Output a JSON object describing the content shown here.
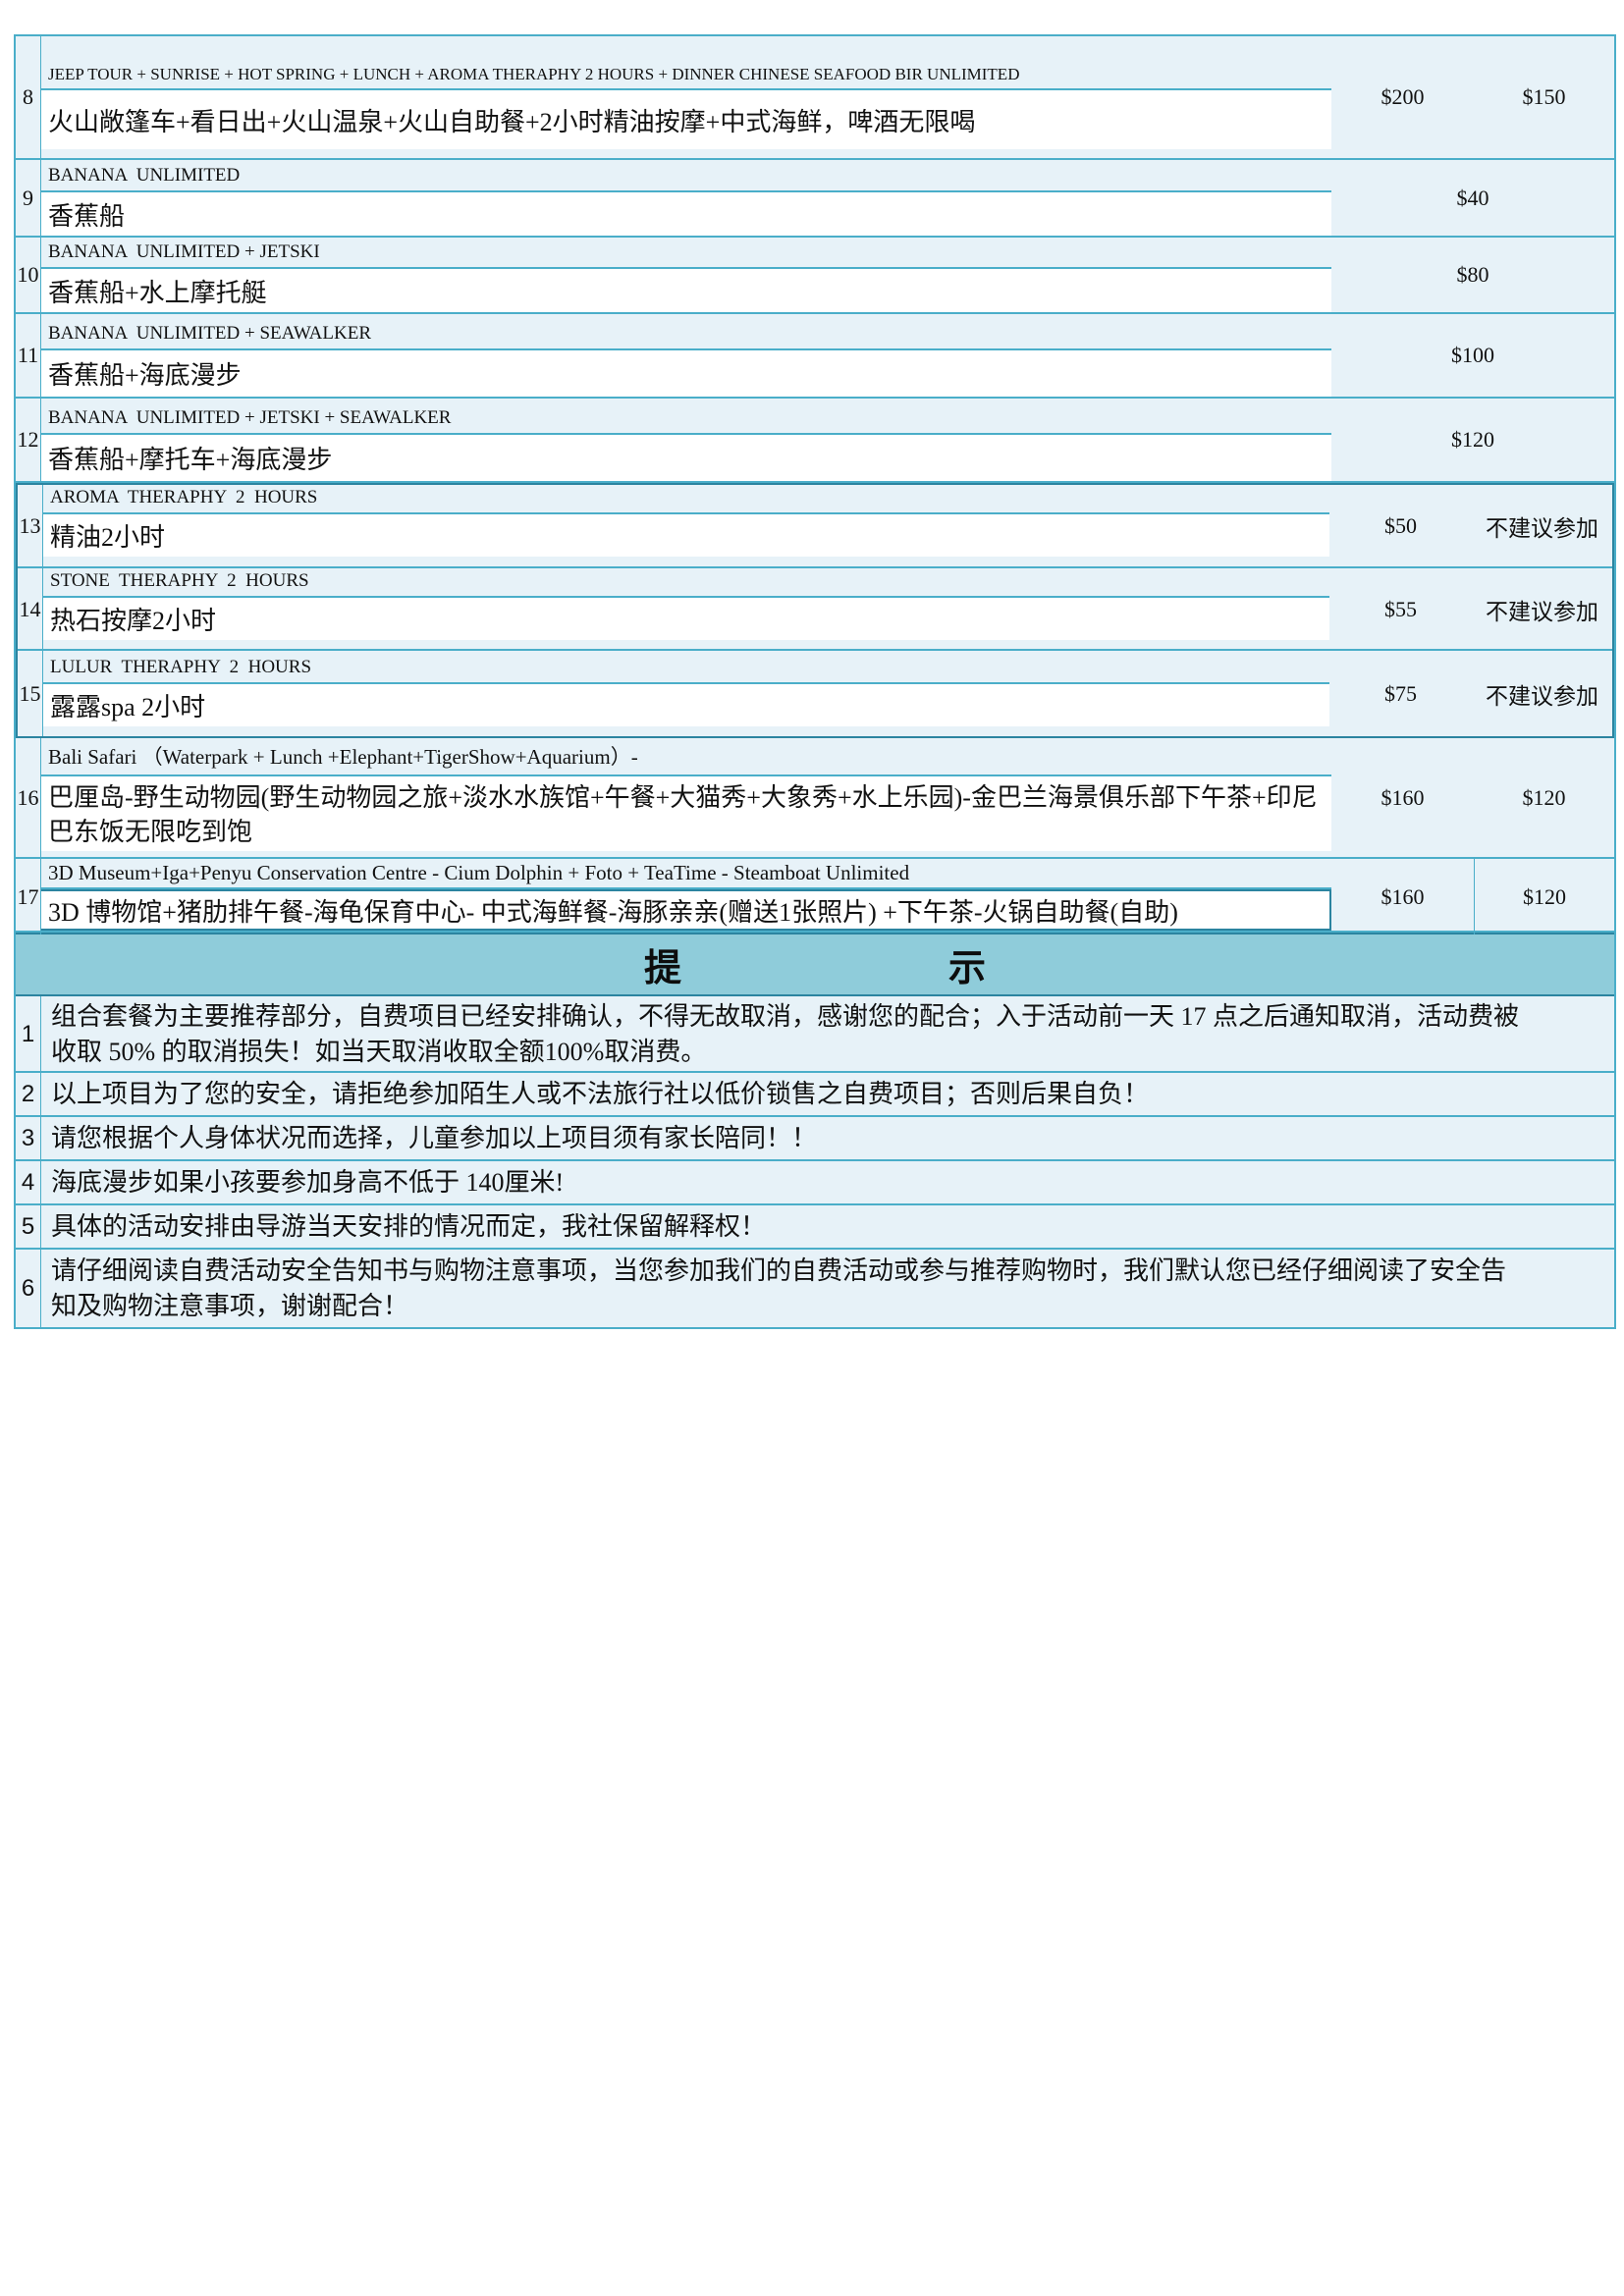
{
  "colors": {
    "border": "#4aaec9",
    "border_dark": "#2b84a0",
    "cell_bg": "#e7f2f8",
    "notice_bg": "#8fccda",
    "white_cell": "#ffffff"
  },
  "rows": [
    {
      "num": "8",
      "en": "JEEP TOUR + SUNRISE + HOT SPRING + LUNCH + AROMA THERAPHY 2 HOURS + DINNER CHINESE SEAFOOD BIR UNLIMITED",
      "zh": "火山敞篷车+看日出+火山温泉+火山自助餐+2小时精油按摩+中式海鲜，啤酒无限喝",
      "price_adult": "$200",
      "price_child": "$150"
    },
    {
      "num": "9",
      "en": "BANANA  UNLIMITED",
      "zh": "香蕉船",
      "price": "$40"
    },
    {
      "num": "10",
      "en": "BANANA  UNLIMITED + JETSKI",
      "zh": "香蕉船+水上摩托艇",
      "price": "$80"
    },
    {
      "num": "11",
      "en": "BANANA  UNLIMITED + SEAWALKER",
      "zh": "香蕉船+海底漫步",
      "price": "$100"
    },
    {
      "num": "12",
      "en": "BANANA  UNLIMITED + JETSKI + SEAWALKER",
      "zh": "香蕉船+摩托车+海底漫步",
      "price": "$120"
    },
    {
      "num": "13",
      "en": "AROMA  THERAPHY  2  HOURS",
      "zh": "精油2小时",
      "price_adult": "$50",
      "remark": "不建议参加"
    },
    {
      "num": "14",
      "en": "STONE  THERAPHY  2  HOURS",
      "zh": "热石按摩2小时",
      "price_adult": "$55",
      "remark": "不建议参加"
    },
    {
      "num": "15",
      "en": "LULUR  THERAPHY  2  HOURS",
      "zh": "露露spa 2小时",
      "price_adult": "$75",
      "remark": "不建议参加"
    },
    {
      "num": "16",
      "en": "Bali Safari （Waterpark + Lunch +Elephant+TigerShow+Aquarium）-",
      "zh": "巴厘岛-野生动物园(野生动物园之旅+淡水水族馆+午餐+大猫秀+大象秀+水上乐园)-金巴兰海景俱乐部下午茶+印尼巴东饭无限吃到饱",
      "price_adult": "$160",
      "price_child": "$120"
    },
    {
      "num": "17",
      "en": "3D Museum+Iga+Penyu Conservation Centre - Cium Dolphin + Foto + TeaTime - Steamboat Unlimited",
      "zh": "3D 博物馆+猪肋排午餐-海龟保育中心- 中式海鲜餐-海豚亲亲(赠送1张照片) +下午茶-火锅自助餐(自助)",
      "price_adult": "$160",
      "price_child": "$120"
    }
  ],
  "notice": {
    "t1": "提",
    "t2": "示"
  },
  "notes": [
    {
      "num": "1",
      "text": "组合套餐为主要推荐部分，自费项目已经安排确认，不得无故取消，感谢您的配合；入于活动前一天 17 点之后通知取消，活动费被收取 50% 的取消损失！如当天取消收取全额100%取消费。"
    },
    {
      "num": "2",
      "text": "以上项目为了您的安全，请拒绝参加陌生人或不法旅行社以低价锁售之自费项目；否则后果自负！"
    },
    {
      "num": "3",
      "text": "请您根据个人身体状况而选择，儿童参加以上项目须有家长陪同！！"
    },
    {
      "num": "4",
      "text": "海底漫步如果小孩要参加身高不低于 140厘米!"
    },
    {
      "num": "5",
      "text": "具体的活动安排由导游当天安排的情况而定，我社保留解释权！"
    },
    {
      "num": "6",
      "text": "请仔细阅读自费活动安全告知书与购物注意事项，当您参加我们的自费活动或参与推荐购物时，我们默认您已经仔细阅读了安全告知及购物注意事项，谢谢配合！"
    }
  ]
}
